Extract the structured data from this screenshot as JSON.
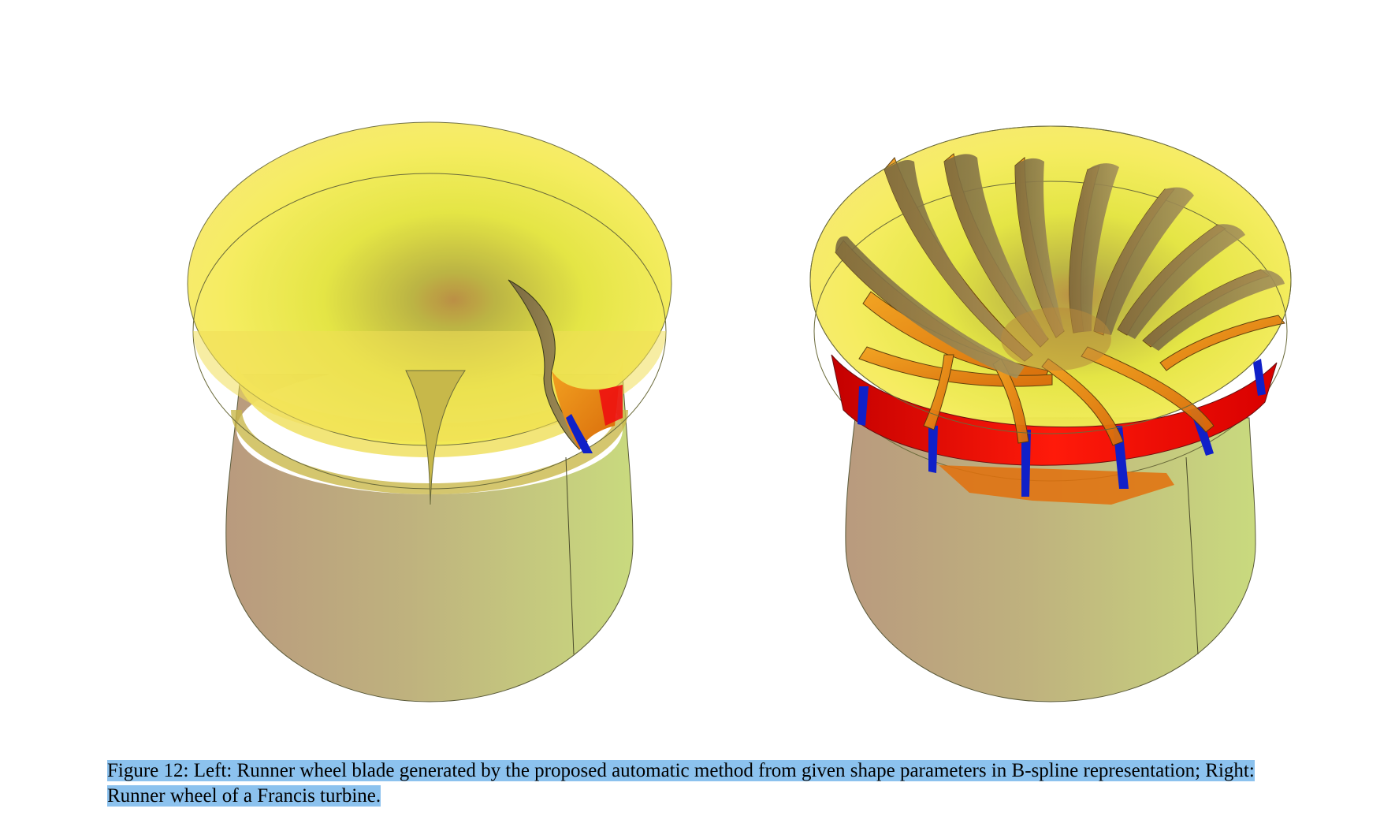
{
  "caption": {
    "line1": "Figure 12: Left: Runner wheel blade generated by the proposed automatic method from given shape parameters in B-spline representation; Right:",
    "line2": "Runner wheel of a Francis turbine."
  },
  "colors": {
    "disk_yellow": "#f6ec5a",
    "bore_tan": "#b89b7d",
    "bore_green": "#c9da7e",
    "blade_orange": "#e8820a",
    "band_red": "#ee1010",
    "edge_blue": "#1020c8",
    "caption_highlight": "#8cc2ee"
  }
}
